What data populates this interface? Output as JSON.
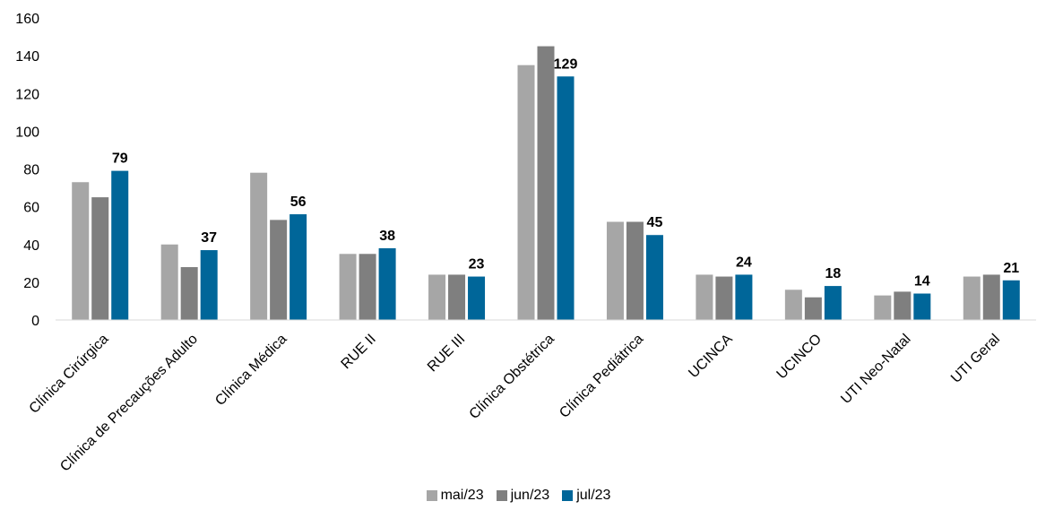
{
  "chart_data": {
    "type": "bar",
    "categories": [
      "Clínica Cirúrgica",
      "Clínica de Precauções Adulto",
      "Clínica Médica",
      "RUE II",
      "RUE III",
      "Clínica Obstétrica",
      "Clínica Pediátrica",
      "UCINCA",
      "UCINCO",
      "UTI Neo-Natal",
      "UTI Geral"
    ],
    "series": [
      {
        "name": "mai/23",
        "color": "#a6a6a6",
        "values": [
          73,
          40,
          78,
          35,
          24,
          135,
          52,
          24,
          16,
          13,
          23
        ]
      },
      {
        "name": "jun/23",
        "color": "#7f7f7f",
        "values": [
          65,
          28,
          53,
          35,
          24,
          145,
          52,
          23,
          12,
          15,
          24
        ]
      },
      {
        "name": "jul/23",
        "color": "#006699",
        "values": [
          79,
          37,
          56,
          38,
          23,
          129,
          45,
          24,
          18,
          14,
          21
        ]
      }
    ],
    "data_labels": [
      "79",
      "37",
      "56",
      "38",
      "23",
      "129",
      "45",
      "24",
      "18",
      "14",
      "21"
    ],
    "y_ticks": [
      "0",
      "20",
      "40",
      "60",
      "80",
      "100",
      "120",
      "140",
      "160"
    ],
    "ylim": [
      0,
      160
    ],
    "grid": false,
    "legend_position": "bottom"
  }
}
